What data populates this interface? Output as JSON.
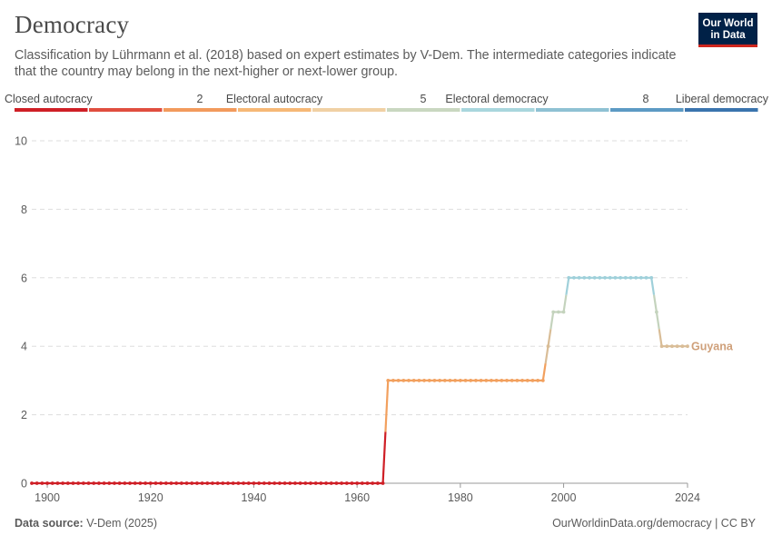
{
  "header": {
    "title": "Democracy",
    "subtitle": "Classification by Lührmann et al. (2018) based on expert estimates by V-Dem. The intermediate categories indicate that the country may belong in the next-higher or next-lower group.",
    "logo_line1": "Our World",
    "logo_line2": "in Data"
  },
  "legend": {
    "labels": [
      "Closed autocracy",
      "2",
      "Electoral autocracy",
      "5",
      "Electoral democracy",
      "8",
      "Liberal democracy"
    ],
    "colors": [
      "#cf1f26",
      "#e04e3f",
      "#f29a5c",
      "#f6b876",
      "#f0d0a4",
      "#c9d7c0",
      "#a9d6dd",
      "#8fc1d3",
      "#5c9ac4",
      "#3a74ae"
    ]
  },
  "footer": {
    "source_label": "Data source:",
    "source_value": "V-Dem (2025)",
    "right": "OurWorldinData.org/democracy | CC BY"
  },
  "chart_data": {
    "type": "line",
    "x_ticks": [
      1900,
      1920,
      1940,
      1960,
      1980,
      2000,
      2024
    ],
    "y_ticks": [
      0,
      2,
      4,
      6,
      8,
      10
    ],
    "xlim": [
      1897,
      2024
    ],
    "ylim": [
      0,
      10
    ],
    "grid": true,
    "series": [
      {
        "name": "Guyana",
        "label_color": "#cfa07a",
        "segments": [
          {
            "from": 1897,
            "to": 1965,
            "value": 0
          },
          {
            "from": 1966,
            "to": 1996,
            "value": 3
          },
          {
            "from": 1997,
            "to": 1997,
            "value": 4
          },
          {
            "from": 1998,
            "to": 2000,
            "value": 5
          },
          {
            "from": 2001,
            "to": 2017,
            "value": 6
          },
          {
            "from": 2018,
            "to": 2018,
            "value": 5
          },
          {
            "from": 2019,
            "to": 2024,
            "value": 4
          }
        ]
      }
    ]
  }
}
